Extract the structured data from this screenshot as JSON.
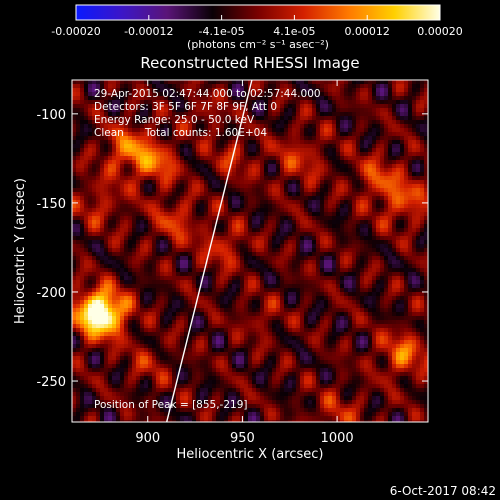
{
  "colorbar": {
    "tick_labels": [
      "-0.00020",
      "-0.00012",
      "-4.1e-05",
      "4.1e-05",
      "0.00012",
      "0.00020"
    ],
    "unit_label": "(photons cm⁻² s⁻¹ asec⁻²)",
    "stops": [
      "#0a1aff",
      "#3b16c8",
      "#5a1478",
      "#0a0005",
      "#7a0000",
      "#d42000",
      "#ff7a00",
      "#ffd000",
      "#ffffe6"
    ]
  },
  "image_info": {
    "time_range": "29-Apr-2015 02:47:44.000 to 02:57:44.000",
    "detectors": "Detectors: 3F 5F 6F 7F 8F 9F, Att 0",
    "energy_range": "Energy Range: 25.0 - 50.0 keV",
    "clean": "Clean",
    "total_counts": "Total counts: 1.60E+04",
    "peak_position": "Position of Peak = [855,-219]"
  },
  "footer": {
    "timestamp": "6-Oct-2017 08:42"
  },
  "chart_data": {
    "type": "heatmap",
    "title": "Reconstructed RHESSI Image",
    "xlabel": "Heliocentric X (arcsec)",
    "ylabel": "Heliocentric Y (arcsec)",
    "xlim": [
      860,
      1048
    ],
    "ylim": [
      -273,
      -81
    ],
    "x_ticks": [
      900,
      950,
      1000
    ],
    "y_ticks": [
      -250,
      -200,
      -150,
      -100
    ],
    "zlim": [
      -0.0002,
      0.0002
    ],
    "limb_line": [
      [
        910,
        -273
      ],
      [
        955,
        -81
      ]
    ]
  }
}
